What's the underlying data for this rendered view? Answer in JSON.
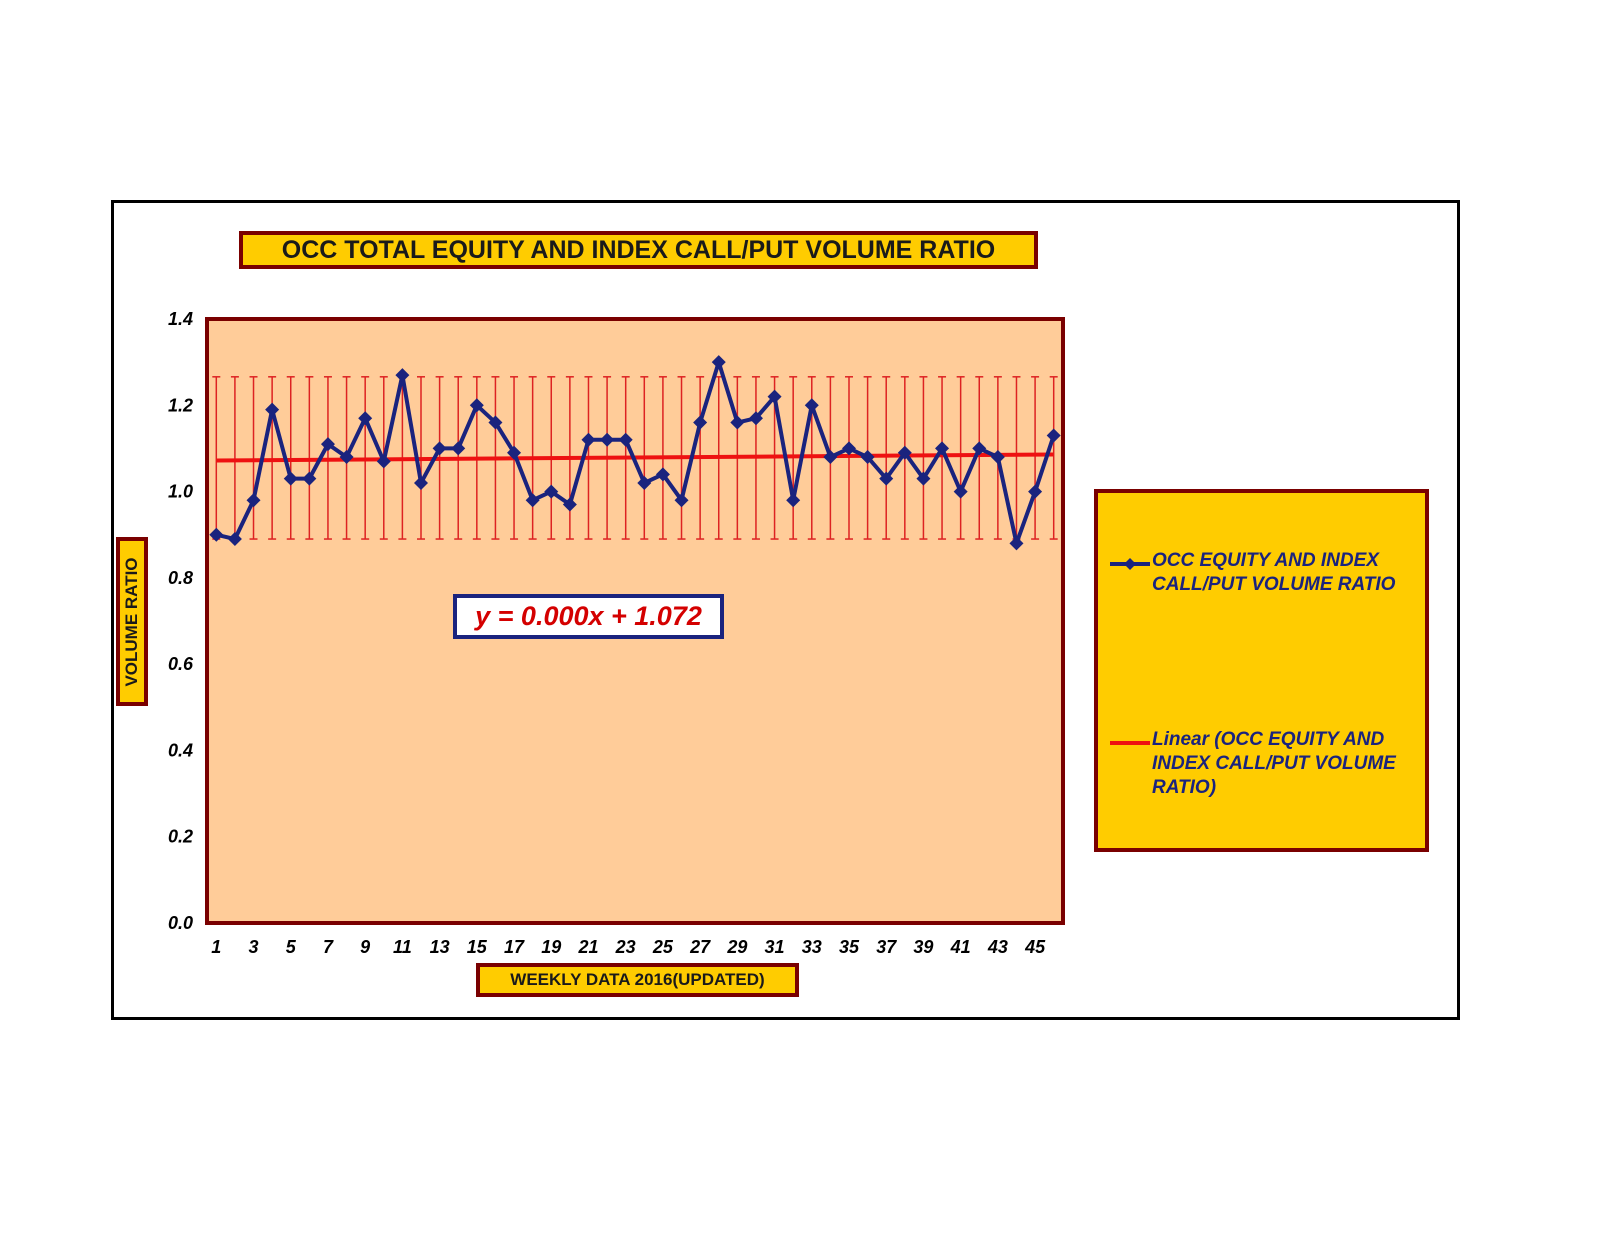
{
  "chart_data": {
    "type": "line",
    "title": "OCC TOTAL EQUITY AND INDEX CALL/PUT VOLUME RATIO",
    "xlabel": "WEEKLY DATA 2016(UPDATED)",
    "ylabel": "VOLUME RATIO",
    "x": [
      1,
      2,
      3,
      4,
      5,
      6,
      7,
      8,
      9,
      10,
      11,
      12,
      13,
      14,
      15,
      16,
      17,
      18,
      19,
      20,
      21,
      22,
      23,
      24,
      25,
      26,
      27,
      28,
      29,
      30,
      31,
      32,
      33,
      34,
      35,
      36,
      37,
      38,
      39,
      40,
      41,
      42,
      43,
      44,
      45,
      46
    ],
    "x_tick_labels": [
      "1",
      "3",
      "5",
      "7",
      "9",
      "11",
      "13",
      "15",
      "17",
      "19",
      "21",
      "23",
      "25",
      "27",
      "29",
      "31",
      "33",
      "35",
      "37",
      "39",
      "41",
      "43",
      "45"
    ],
    "ylim": [
      0.0,
      1.4
    ],
    "y_tick_labels": [
      "0.0",
      "0.2",
      "0.4",
      "0.6",
      "0.8",
      "1.0",
      "1.2",
      "1.4"
    ],
    "series": [
      {
        "name": "OCC EQUITY AND INDEX CALL/PUT VOLUME RATIO",
        "color": "#1a237e",
        "marker": "diamond",
        "values": [
          0.9,
          0.89,
          0.98,
          1.19,
          1.03,
          1.03,
          1.11,
          1.08,
          1.17,
          1.07,
          1.27,
          1.02,
          1.1,
          1.1,
          1.2,
          1.16,
          1.09,
          0.98,
          1.0,
          0.97,
          1.12,
          1.12,
          1.12,
          1.02,
          1.04,
          0.98,
          1.16,
          1.3,
          1.16,
          1.17,
          1.22,
          0.98,
          1.2,
          1.08,
          1.1,
          1.08,
          1.03,
          1.09,
          1.03,
          1.1,
          1.0,
          1.1,
          1.08,
          0.88,
          1.0,
          1.13
        ]
      }
    ],
    "trendline": {
      "name": "Linear (OCC EQUITY AND INDEX CALL/PUT VOLUME RATIO)",
      "color": "#ee1111",
      "start": 1.072,
      "end": 1.086,
      "equation": "y = 0.000x + 1.072"
    },
    "error_band": {
      "low": 0.89,
      "high": 1.266,
      "color": "#dd2222"
    },
    "colors": {
      "plot_background": "#ffcc99",
      "plot_border": "#7a0000",
      "label_box": "#ffcc00"
    },
    "legend_position": "right",
    "grid": false
  }
}
